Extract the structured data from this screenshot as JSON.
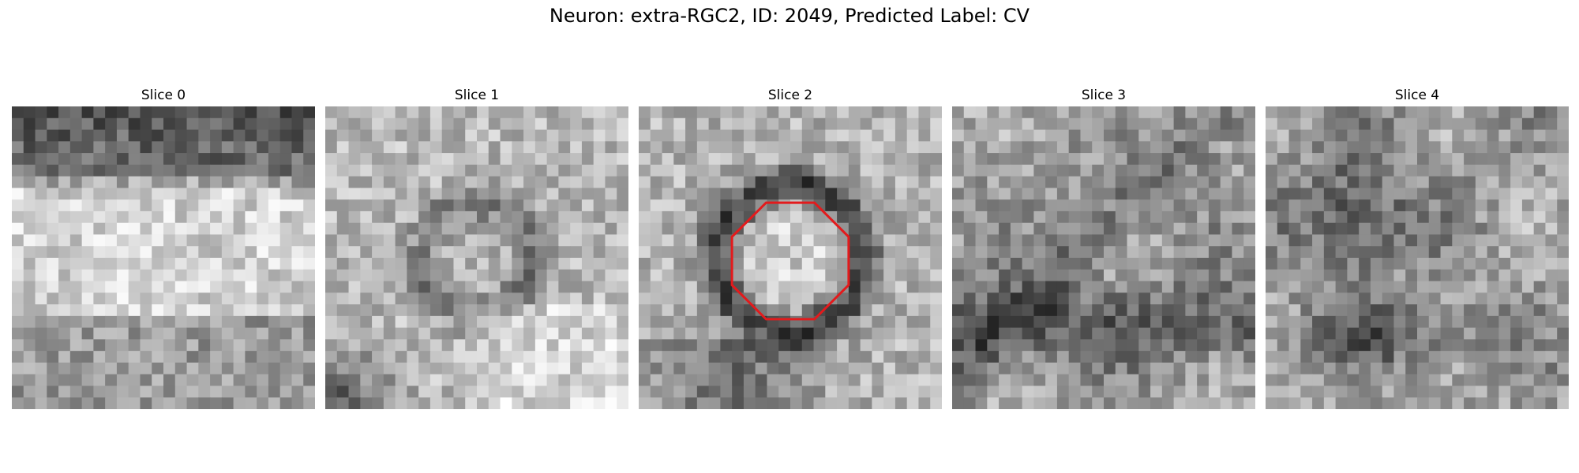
{
  "figure": {
    "title": "Neuron: extra-RGC2, ID: 2049, Predicted Label: CV"
  },
  "slices": [
    {
      "title": "Slice 0",
      "depicts": "grayscale EM patch, dark band at top, bright textured region below",
      "seed": 11,
      "pattern": "band"
    },
    {
      "title": "Slice 1",
      "depicts": "grayscale EM patch, faint ring near center, dark region bottom-left",
      "seed": 23,
      "pattern": "ring-faint"
    },
    {
      "title": "Slice 2",
      "depicts": "grayscale EM patch, dark ring around bright center outlined by red octagon",
      "seed": 37,
      "pattern": "ring"
    },
    {
      "title": "Slice 3",
      "depicts": "grayscale EM patch, mottled texture with dark streaks",
      "seed": 41,
      "pattern": "mottled"
    },
    {
      "title": "Slice 4",
      "depicts": "grayscale EM patch, mottled texture with dark blotches",
      "seed": 53,
      "pattern": "blotch"
    }
  ],
  "overlay": {
    "slice_index": 2,
    "shape": "octagon",
    "color": "#e31a1c"
  }
}
